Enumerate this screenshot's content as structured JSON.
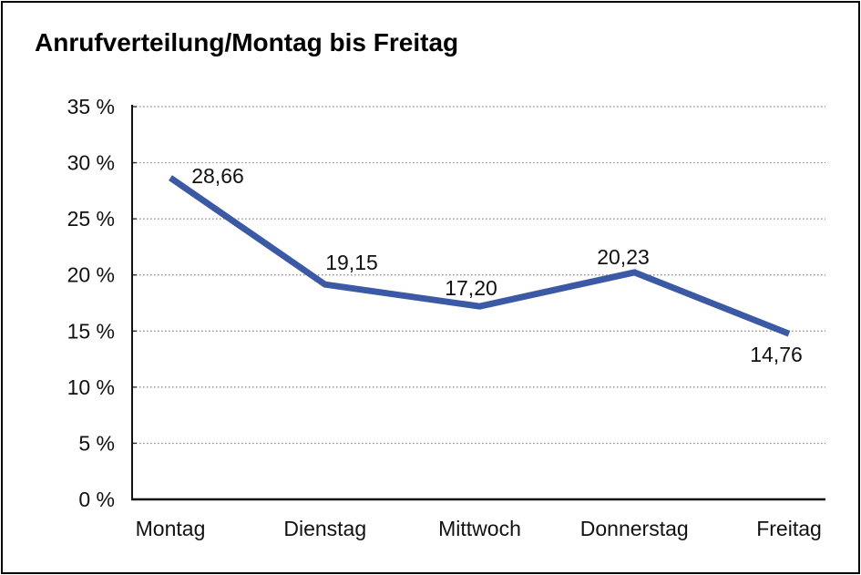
{
  "chart_data": {
    "type": "line",
    "title": "Anrufverteilung/Montag bis Freitag",
    "categories": [
      "Montag",
      "Dienstag",
      "Mittwoch",
      "Donnerstag",
      "Freitag"
    ],
    "series": [
      {
        "name": "Anrufverteilung",
        "values": [
          28.66,
          19.15,
          17.2,
          20.23,
          14.76
        ],
        "value_labels": [
          "28,66",
          "19,15",
          "17,20",
          "20,23",
          "14,76"
        ]
      }
    ],
    "xlabel": "",
    "ylabel": "",
    "ylim": [
      0,
      35
    ],
    "yticks": [
      0,
      5,
      10,
      15,
      20,
      25,
      30,
      35
    ],
    "ytick_labels": [
      "0 %",
      "5 %",
      "10 %",
      "15 %",
      "20 %",
      "25 %",
      "30 %",
      "35 %"
    ],
    "grid": "horizontal dotted gridlines at 5% steps",
    "legend_position": "none",
    "colors": {
      "line": "#3B59A5",
      "grid": "#8a8a8a",
      "axis": "#111111",
      "text": "#111111",
      "background": "#ffffff",
      "frame_border": "#000000"
    }
  }
}
